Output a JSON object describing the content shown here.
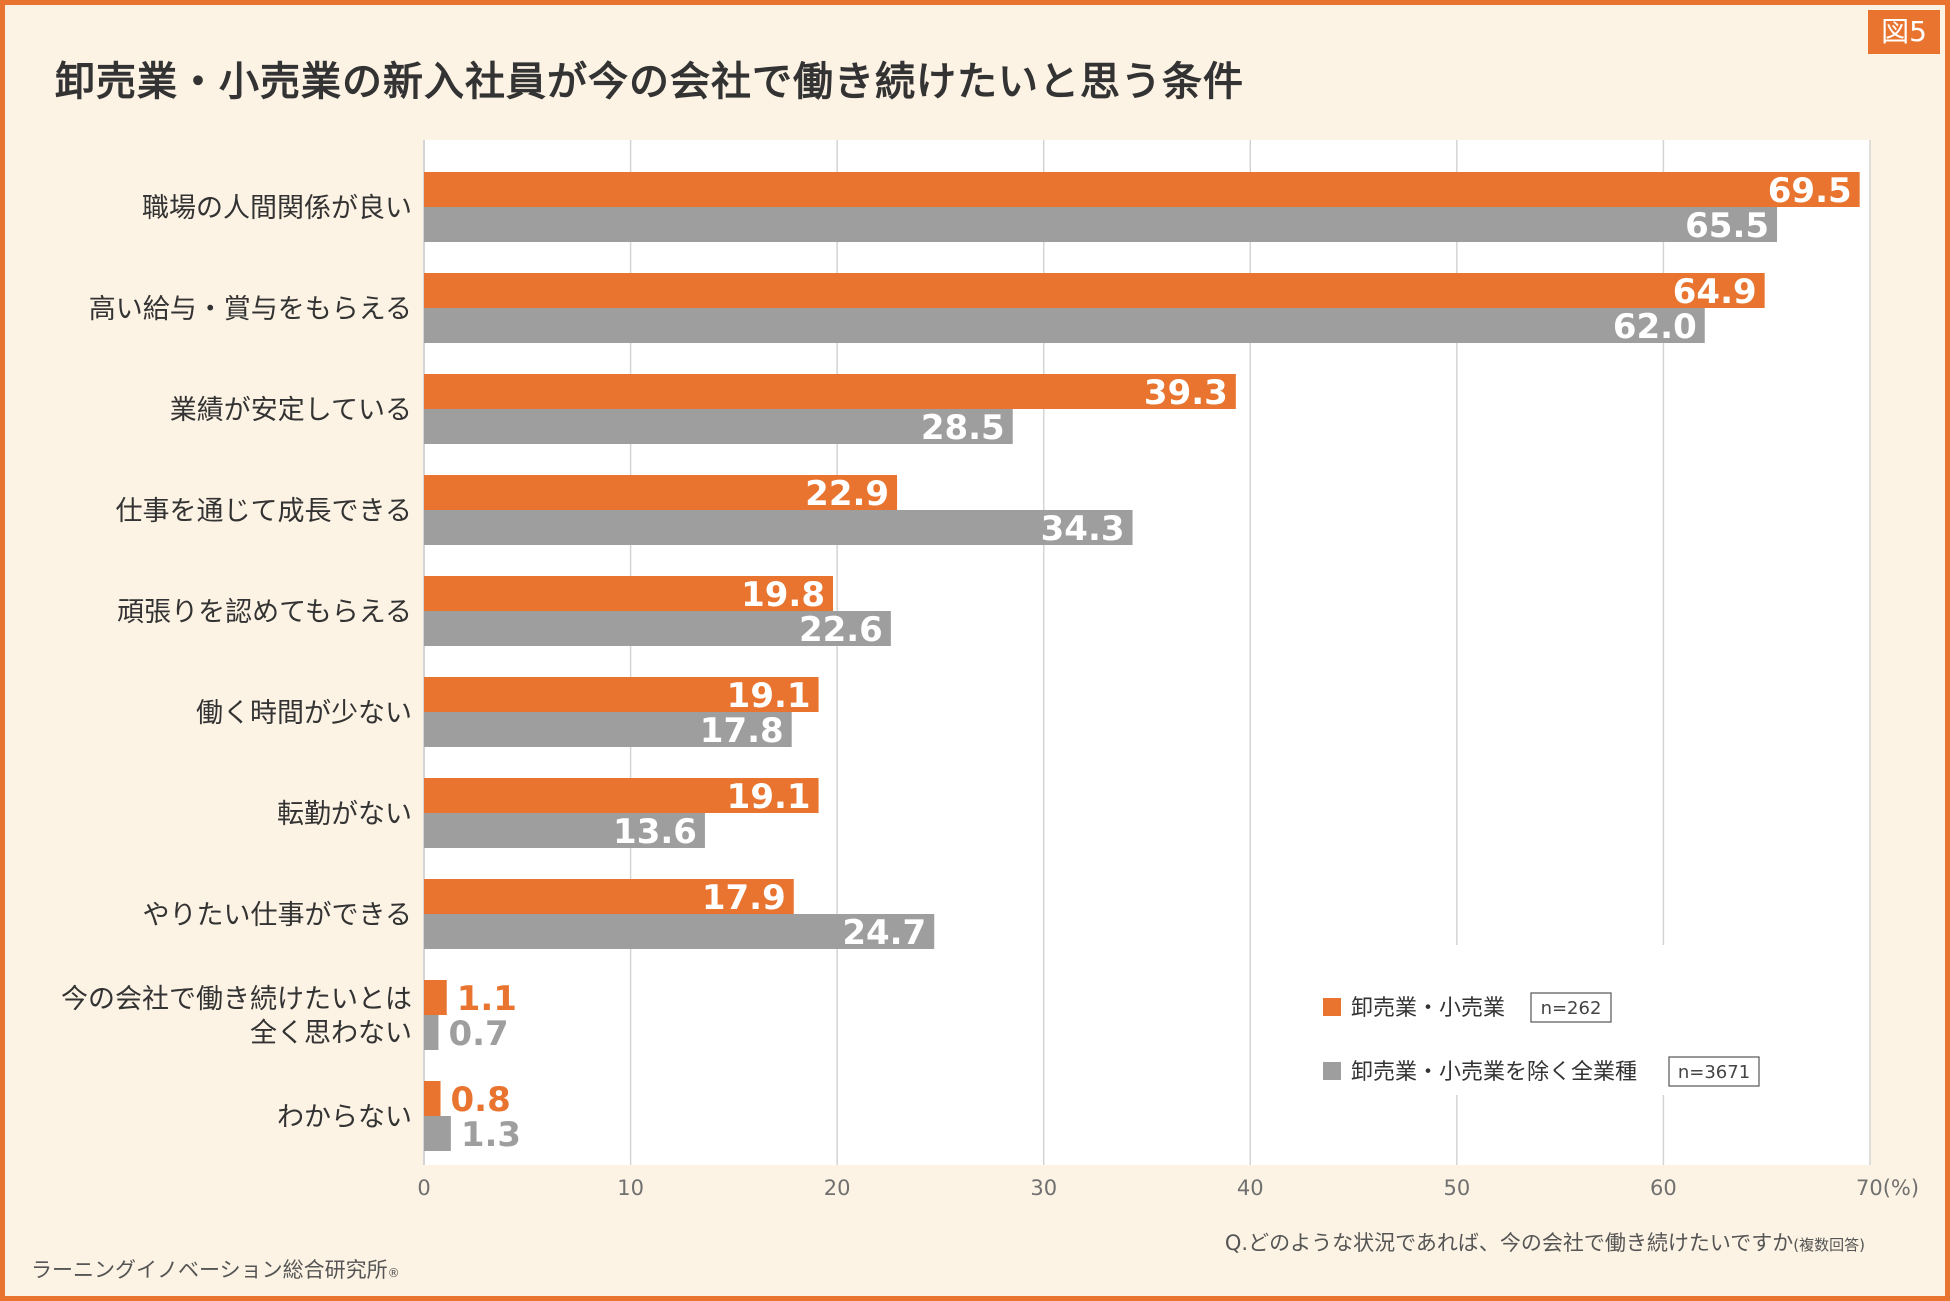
{
  "figure_label": "図5",
  "title": "卸売業・小売業の新入社員が今の会社で働き続けたいと思う条件",
  "question": "Q.どのような状況であれば、今の会社で働き続けたいですか",
  "question_note": "(複数回答)",
  "credit": "ラーニングイノベーション総合研究所",
  "credit_mark": "®",
  "colors": {
    "frame": "#e8742f",
    "background": "#fcf3e4",
    "series_retail": "#e8742f",
    "series_other": "#9e9e9e"
  },
  "chart_data": {
    "type": "bar",
    "orientation": "horizontal",
    "title": "卸売業・小売業の新入社員が今の会社で働き続けたいと思う条件",
    "xlabel": "(%)",
    "xlim": [
      0,
      70
    ],
    "ticks": [
      0,
      10,
      20,
      30,
      40,
      50,
      60,
      70
    ],
    "tick_labels": [
      "0",
      "10",
      "20",
      "30",
      "40",
      "50",
      "60",
      "70(%)"
    ],
    "grid": true,
    "categories": [
      [
        "職場の人間関係が良い"
      ],
      [
        "高い給与・賞与をもらえる"
      ],
      [
        "業績が安定している"
      ],
      [
        "仕事を通じて成長できる"
      ],
      [
        "頑張りを認めてもらえる"
      ],
      [
        "働く時間が少ない"
      ],
      [
        "転勤がない"
      ],
      [
        "やりたい仕事ができる"
      ],
      [
        "今の会社で働き続けたいとは",
        "全く思わない"
      ],
      [
        "わからない"
      ]
    ],
    "series": [
      {
        "name": "卸売業・小売業",
        "n": "n=262",
        "values": [
          69.5,
          64.9,
          39.3,
          22.9,
          19.8,
          19.1,
          19.1,
          17.9,
          1.1,
          0.8
        ],
        "labels": [
          "69.5",
          "64.9",
          "39.3",
          "22.9",
          "19.8",
          "19.1",
          "19.1",
          "17.9",
          "1.1",
          "0.8"
        ]
      },
      {
        "name": "卸売業・小売業を除く全業種",
        "n": "n=3671",
        "values": [
          65.5,
          62.0,
          28.5,
          34.3,
          22.6,
          17.8,
          13.6,
          24.7,
          0.7,
          1.3
        ],
        "labels": [
          "65.5",
          "62.0",
          "28.5",
          "34.3",
          "22.6",
          "17.8",
          "13.6",
          "24.7",
          "0.7",
          "1.3"
        ]
      }
    ],
    "legend_position": "bottom-right"
  }
}
